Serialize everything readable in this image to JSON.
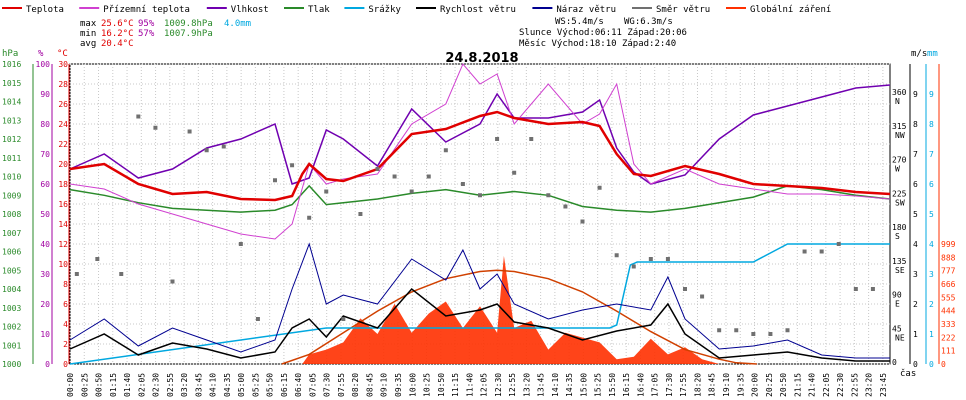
{
  "chart_data": {
    "type": "line",
    "title": "24.8.2018",
    "legend": [
      {
        "name": "Teplota",
        "color": "#e00000"
      },
      {
        "name": "Přízemní teplota",
        "color": "#d040d0"
      },
      {
        "name": "Vlhkost",
        "color": "#7000b0"
      },
      {
        "name": "Tlak",
        "color": "#2a8a2a"
      },
      {
        "name": "Srážky",
        "color": "#00a8e0"
      },
      {
        "name": "Rychlost větru",
        "color": "#000000"
      },
      {
        "name": "Náraz větru",
        "color": "#000090"
      },
      {
        "name": "Směr větru",
        "color": "#707070"
      },
      {
        "name": "Globální záření",
        "color": "#ff3000"
      }
    ],
    "stats": {
      "max": {
        "label": "max",
        "temp": "25.6°C",
        "hum": "95%",
        "press": "1009.8hPa",
        "rain": "4.0mm"
      },
      "min": {
        "label": "min",
        "temp": "16.2°C",
        "hum": "57%",
        "press": "1007.9hPa"
      },
      "avg": {
        "label": "avg",
        "temp": "20.4°C"
      }
    },
    "info": {
      "ws": "WS:5.4m/s",
      "wg": "WG:6.3m/s",
      "sun": "Slunce Východ:06:11  Západ:20:06",
      "moon": "Měsíc  Východ:18:10  Západ:2:40"
    },
    "axes_left": {
      "hpa": {
        "label": "hPa",
        "ticks": [
          "1016",
          "1015",
          "1014",
          "1013",
          "1012",
          "1011",
          "1010",
          "1009",
          "1008",
          "1007",
          "1006",
          "1005",
          "1004",
          "1003",
          "1002",
          "1001",
          "1000"
        ],
        "color": "#2a8a2a"
      },
      "pct": {
        "label": "%",
        "ticks": [
          "100",
          "90",
          "80",
          "70",
          "60",
          "50",
          "40",
          "30",
          "20",
          "10",
          "0"
        ],
        "color": "#a000a0"
      },
      "deg": {
        "label": "°C",
        "ticks": [
          "30",
          "28",
          "26",
          "24",
          "22",
          "20",
          "18",
          "16",
          "14",
          "12",
          "10",
          "8",
          "6",
          "4",
          "2",
          "0"
        ],
        "color": "#e00000"
      }
    },
    "axes_right": {
      "dir": {
        "ticks": [
          {
            "v": "360",
            "s": "N"
          },
          {
            "v": "315",
            "s": "NW"
          },
          {
            "v": "270",
            "s": "W"
          },
          {
            "v": "225",
            "s": "SW"
          },
          {
            "v": "180",
            "s": "S"
          },
          {
            "v": "135",
            "s": "SE"
          },
          {
            "v": "90",
            "s": "E"
          },
          {
            "v": "45",
            "s": "NE"
          },
          {
            "v": "0",
            "s": ""
          }
        ]
      },
      "ms": {
        "label": "m/s",
        "ticks": [
          "9",
          "8",
          "7",
          "6",
          "5",
          "4",
          "3",
          "2",
          "1",
          "0"
        ]
      },
      "mm": {
        "label": "mm",
        "ticks": [
          "9",
          "8",
          "7",
          "6",
          "5",
          "4",
          "3",
          "2",
          "1",
          "0"
        ],
        "color": "#00a8e0"
      },
      "wm2": {
        "ticks": [
          "999",
          "888",
          "777",
          "666",
          "555",
          "444",
          "333",
          "222",
          "111",
          "0"
        ],
        "color": "#ff3000"
      }
    },
    "x_ticks": [
      "00:00",
      "00:25",
      "00:50",
      "01:15",
      "01:40",
      "02:05",
      "02:30",
      "02:55",
      "03:20",
      "03:45",
      "04:10",
      "04:35",
      "05:00",
      "05:25",
      "05:50",
      "06:15",
      "06:40",
      "07:05",
      "07:30",
      "07:55",
      "08:20",
      "08:45",
      "09:10",
      "09:35",
      "10:00",
      "10:25",
      "10:50",
      "11:15",
      "11:40",
      "12:05",
      "12:30",
      "12:55",
      "13:20",
      "13:45",
      "14:10",
      "14:35",
      "15:00",
      "15:25",
      "15:50",
      "16:15",
      "16:40",
      "17:05",
      "17:30",
      "17:55",
      "18:20",
      "18:45",
      "19:10",
      "19:35",
      "20:00",
      "20:25",
      "20:50",
      "21:15",
      "21:40",
      "22:05",
      "22:30",
      "22:55",
      "23:20",
      "23:45"
    ],
    "xlabel": "čas",
    "series": {
      "temperature": {
        "unit": "°C",
        "x": [
          0,
          1,
          2,
          3,
          4,
          5,
          6,
          6.5,
          6.8,
          7,
          7.5,
          8,
          9,
          10,
          11,
          12,
          12.5,
          13,
          14,
          15,
          15.5,
          16,
          16.5,
          17,
          18,
          19,
          20,
          21,
          22,
          23,
          24
        ],
        "y": [
          19.5,
          20,
          18,
          17,
          17.2,
          16.5,
          16.4,
          16.8,
          19,
          20,
          18.5,
          18.3,
          19.5,
          23,
          23.5,
          24.8,
          25.2,
          24.6,
          24,
          24.2,
          23.8,
          21,
          19,
          18.8,
          19.8,
          19,
          18,
          17.8,
          17.6,
          17.2,
          17
        ]
      },
      "ground_temperature": {
        "unit": "°C",
        "x": [
          0,
          1,
          2,
          3,
          4,
          5,
          6,
          6.5,
          7,
          7.5,
          8,
          9,
          10,
          11,
          11.5,
          12,
          12.5,
          13,
          14,
          15,
          15.5,
          16,
          16.5,
          17,
          18,
          19,
          20,
          21,
          22,
          23,
          24
        ],
        "y": [
          18,
          17.5,
          16,
          15,
          14,
          13,
          12.5,
          14,
          20,
          18,
          18.5,
          19,
          24,
          26,
          30,
          28,
          29,
          24,
          28,
          24,
          25,
          28,
          20,
          18,
          19.5,
          18,
          17.5,
          17,
          17,
          16.8,
          16.5
        ]
      },
      "humidity": {
        "unit": "%",
        "x": [
          0,
          1,
          2,
          3,
          4,
          5,
          6,
          6.5,
          7,
          7.5,
          8,
          9,
          10,
          11,
          12,
          12.5,
          13,
          14,
          15,
          15.5,
          16,
          16.5,
          17,
          18,
          19,
          20,
          21,
          22,
          23,
          24
        ],
        "y": [
          65,
          70,
          62,
          65,
          72,
          75,
          80,
          60,
          62,
          78,
          75,
          66,
          85,
          74,
          80,
          90,
          82,
          82,
          84,
          88,
          72,
          64,
          60,
          63,
          75,
          83,
          86,
          89,
          92,
          93
        ]
      },
      "pressure": {
        "unit": "hPa",
        "x": [
          0,
          1,
          2,
          3,
          4,
          5,
          6,
          6.5,
          7,
          7.5,
          8,
          9,
          10,
          11,
          12,
          13,
          14,
          15,
          16,
          17,
          18,
          19,
          20,
          21,
          22,
          23,
          24
        ],
        "y": [
          1009.3,
          1009,
          1008.6,
          1008.3,
          1008.2,
          1008.1,
          1008.2,
          1008.5,
          1009.5,
          1008.5,
          1008.6,
          1008.8,
          1009.1,
          1009.3,
          1009,
          1009.2,
          1009,
          1008.4,
          1008.2,
          1008.1,
          1008.3,
          1008.6,
          1008.9,
          1009.5,
          1009.3,
          1009,
          1008.8
        ]
      },
      "rain_cumulative": {
        "unit": "mm",
        "x": [
          0,
          7.5,
          15.8,
          16,
          16.4,
          16.6,
          20,
          20.5,
          21,
          24
        ],
        "y": [
          0,
          1.2,
          1.2,
          1.3,
          3.3,
          3.4,
          3.4,
          3.7,
          4.0,
          4.0
        ]
      },
      "solar_radiation_model": {
        "unit": "W/m²",
        "x": [
          6.2,
          7,
          8,
          9,
          10,
          11,
          12,
          12.5,
          13,
          14,
          15,
          16,
          17,
          18,
          19,
          19.5,
          20.1
        ],
        "y": [
          0,
          80,
          260,
          440,
          600,
          710,
          770,
          780,
          770,
          710,
          600,
          440,
          270,
          120,
          40,
          10,
          0
        ]
      },
      "solar_radiation": {
        "unit": "W/m²",
        "x": [
          6.8,
          7,
          7.5,
          8,
          8.5,
          9,
          9.5,
          10,
          10.5,
          11,
          11.5,
          12,
          12.5,
          12.7,
          13,
          13.5,
          14,
          14.5,
          15,
          15.5,
          16,
          16.5,
          17,
          17.5,
          18,
          18.5,
          19
        ],
        "y": [
          0,
          80,
          120,
          180,
          380,
          250,
          500,
          260,
          420,
          520,
          300,
          480,
          260,
          900,
          300,
          360,
          120,
          260,
          220,
          180,
          40,
          60,
          210,
          80,
          140,
          40,
          0
        ]
      },
      "wind_speed": {
        "unit": "m/s",
        "x": [
          0,
          1,
          2,
          3,
          4,
          5,
          6,
          6.5,
          7,
          7.5,
          8,
          9,
          10,
          11,
          12,
          12.5,
          13,
          14,
          15,
          16,
          17,
          17.5,
          18,
          19,
          20,
          21,
          22,
          23,
          24
        ],
        "y": [
          0.5,
          1,
          0.3,
          0.7,
          0.5,
          0.2,
          0.4,
          1.2,
          1.5,
          0.9,
          1.6,
          1.2,
          2.5,
          1.6,
          1.8,
          2,
          1.4,
          1.2,
          0.8,
          1.1,
          1.3,
          2,
          1,
          0.2,
          0.3,
          0.4,
          0.2,
          0.1,
          0.1
        ]
      },
      "wind_gust": {
        "unit": "m/s",
        "x": [
          0,
          1,
          2,
          3,
          4,
          5,
          6,
          6.5,
          7,
          7.5,
          8,
          9,
          10,
          11,
          11.5,
          12,
          12.5,
          13,
          14,
          15,
          16,
          17,
          17.5,
          18,
          19,
          20,
          21,
          22,
          23,
          24
        ],
        "y": [
          0.8,
          1.5,
          0.6,
          1.2,
          0.8,
          0.4,
          0.8,
          2.5,
          4,
          2,
          2.3,
          2,
          3.5,
          2.8,
          3.8,
          2.5,
          3,
          2,
          1.5,
          1.8,
          2,
          1.8,
          2.9,
          1.5,
          0.5,
          0.6,
          0.8,
          0.3,
          0.2,
          0.2
        ]
      },
      "wind_direction": {
        "unit": "°",
        "x": [
          0.2,
          0.8,
          1.5,
          2,
          2.5,
          3,
          3.5,
          4,
          4.5,
          5,
          5.5,
          6,
          6.5,
          7,
          7.5,
          8,
          8.5,
          9,
          9.5,
          10,
          10.5,
          11,
          11.5,
          12,
          12.5,
          13,
          13.5,
          14,
          14.5,
          15,
          15.5,
          16,
          16.5,
          17,
          17.5,
          18,
          18.5,
          19,
          19.5,
          20,
          20.5,
          21,
          21.5,
          22,
          22.5,
          23,
          23.5
        ],
        "y": [
          120,
          140,
          120,
          330,
          315,
          110,
          310,
          285,
          290,
          160,
          60,
          245,
          265,
          195,
          230,
          60,
          200,
          260,
          250,
          230,
          250,
          285,
          240,
          225,
          300,
          255,
          300,
          225,
          210,
          190,
          235,
          145,
          130,
          140,
          140,
          100,
          90,
          45,
          45,
          40,
          40,
          45,
          150,
          150,
          160,
          100,
          100
        ]
      }
    }
  }
}
